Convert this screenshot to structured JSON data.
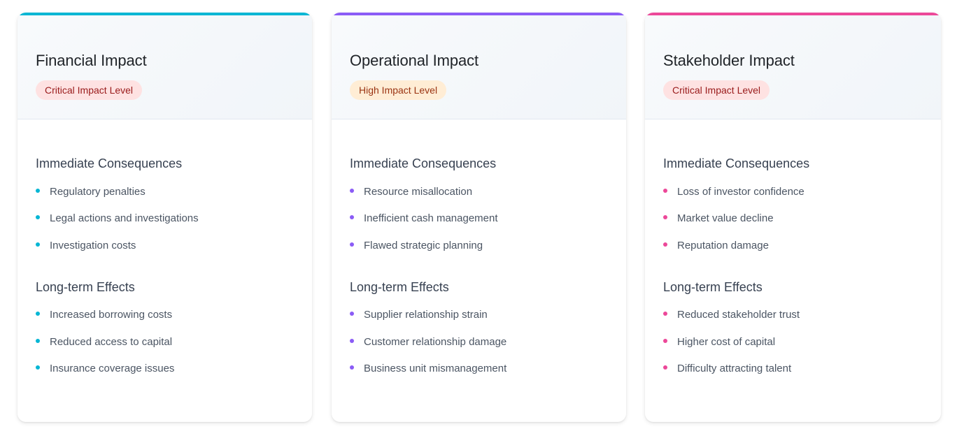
{
  "theme": {
    "financial_accent": "#06b6d4",
    "operational_accent": "#8b5cf6",
    "stakeholder_accent": "#ec4899",
    "critical_badge_bg": "#fee2e2",
    "critical_badge_text": "#991b1b",
    "high_badge_bg": "#ffedd5",
    "high_badge_text": "#9a3412"
  },
  "cards": [
    {
      "title": "Financial Impact",
      "badge": "Critical Impact Level",
      "badge_level": "critical",
      "accent": "#06b6d4",
      "sections": [
        {
          "title": "Immediate Consequences",
          "items": [
            "Regulatory penalties",
            "Legal actions and investigations",
            "Investigation costs"
          ]
        },
        {
          "title": "Long-term Effects",
          "items": [
            "Increased borrowing costs",
            "Reduced access to capital",
            "Insurance coverage issues"
          ]
        }
      ]
    },
    {
      "title": "Operational Impact",
      "badge": "High Impact Level",
      "badge_level": "high",
      "accent": "#8b5cf6",
      "sections": [
        {
          "title": "Immediate Consequences",
          "items": [
            "Resource misallocation",
            "Inefficient cash management",
            "Flawed strategic planning"
          ]
        },
        {
          "title": "Long-term Effects",
          "items": [
            "Supplier relationship strain",
            "Customer relationship damage",
            "Business unit mismanagement"
          ]
        }
      ]
    },
    {
      "title": "Stakeholder Impact",
      "badge": "Critical Impact Level",
      "badge_level": "critical",
      "accent": "#ec4899",
      "sections": [
        {
          "title": "Immediate Consequences",
          "items": [
            "Loss of investor confidence",
            "Market value decline",
            "Reputation damage"
          ]
        },
        {
          "title": "Long-term Effects",
          "items": [
            "Reduced stakeholder trust",
            "Higher cost of capital",
            "Difficulty attracting talent"
          ]
        }
      ]
    }
  ]
}
